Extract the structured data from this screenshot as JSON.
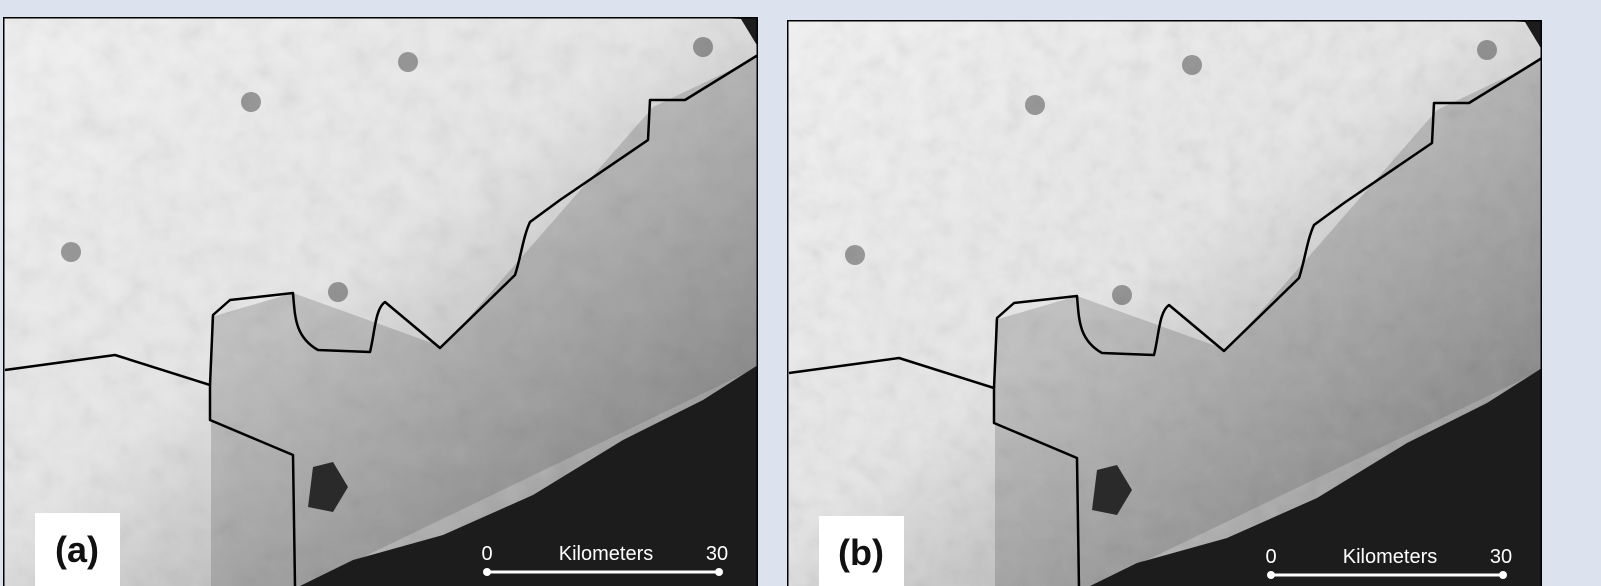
{
  "panels": [
    {
      "label": "(a)",
      "scale": {
        "start": "0",
        "unit": "Kilometers",
        "end": "30"
      }
    },
    {
      "label": "(b)",
      "scale": {
        "start": "0",
        "unit": "Kilometers",
        "end": "30"
      }
    }
  ]
}
